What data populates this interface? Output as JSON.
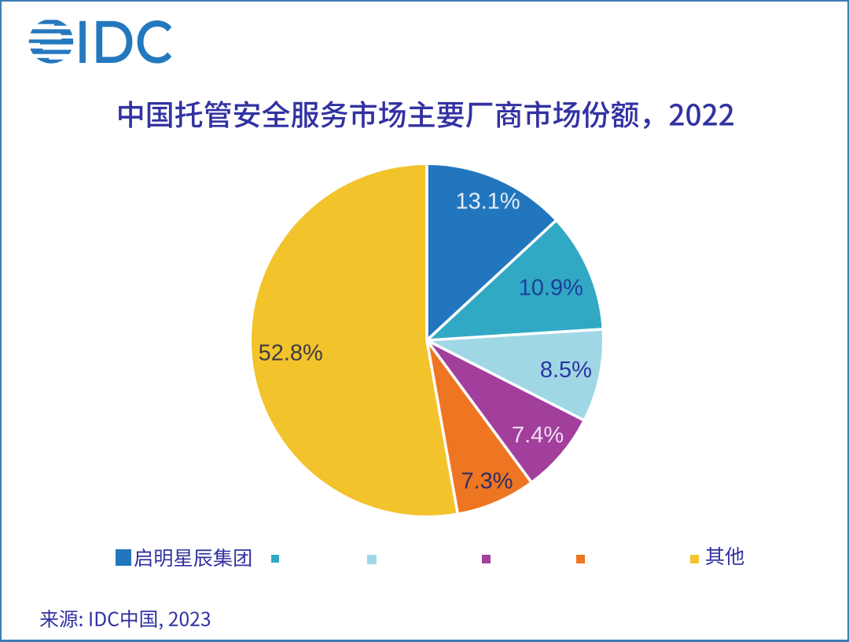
{
  "page": {
    "background": "#ffffff",
    "border_color": "#3e7cb6"
  },
  "logo": {
    "text": "IDC",
    "color": "#2478be",
    "globe_icon": "striped-globe-icon"
  },
  "title": {
    "text": "中国托管安全服务市场主要厂商市场份额，2022",
    "color": "#3232a2"
  },
  "chart_data": {
    "type": "pie",
    "title": "中国托管安全服务市场主要厂商市场份额，2022",
    "unit": "percent",
    "start_angle_deg": 0,
    "direction": "clockwise",
    "slices": [
      {
        "label": "启明星辰集团",
        "value": 13.1,
        "display": "13.1%",
        "color": "#2276be",
        "label_color": "#e2edf8"
      },
      {
        "label": "",
        "value": 10.9,
        "display": "10.9%",
        "color": "#31a9c4",
        "label_color": "#1d3e9b"
      },
      {
        "label": "",
        "value": 8.5,
        "display": "8.5%",
        "color": "#a0d7e5",
        "label_color": "#2c33a3"
      },
      {
        "label": "",
        "value": 7.4,
        "display": "7.4%",
        "color": "#a23f9d",
        "label_color": "#f0dff0"
      },
      {
        "label": "",
        "value": 7.3,
        "display": "7.3%",
        "color": "#ee7522",
        "label_color": "#322d63"
      },
      {
        "label": "其他",
        "value": 52.8,
        "display": "52.8%",
        "color": "#f3c32b",
        "label_color": "#3e3d45"
      }
    ],
    "slice_gap_color": "#ffffff",
    "legend_position": "bottom"
  },
  "legend": {
    "text_color": "#3232a2",
    "items": [
      {
        "label": "启明星辰集团",
        "color": "#2276be"
      },
      {
        "label": "",
        "color": "#31a9c4"
      },
      {
        "label": "",
        "color": "#a0d7e5"
      },
      {
        "label": "",
        "color": "#a23f9d"
      },
      {
        "label": "",
        "color": "#ee7522"
      },
      {
        "label": "其他",
        "color": "#f3c32b"
      }
    ]
  },
  "source": {
    "text": "来源: IDC中国, 2023",
    "color": "#3232a2"
  }
}
